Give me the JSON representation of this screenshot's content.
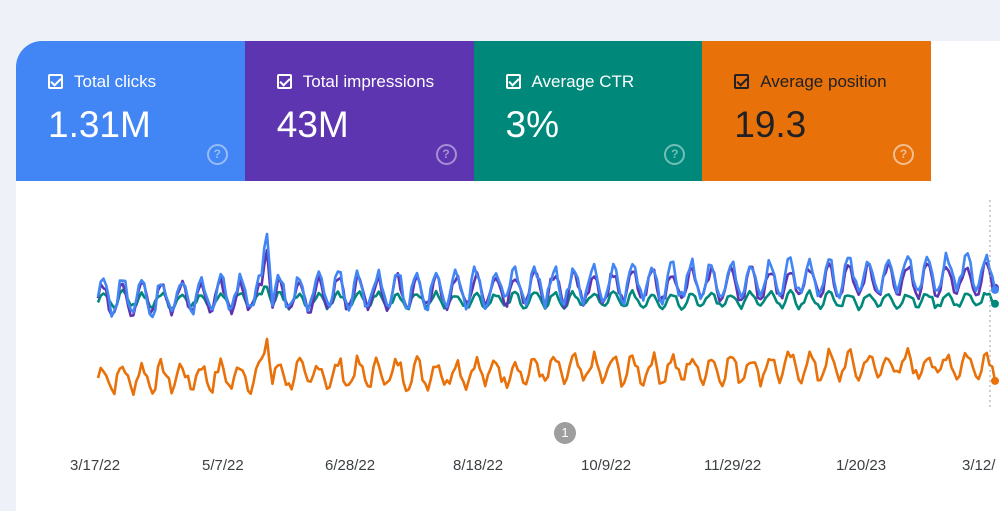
{
  "tiles": [
    {
      "key": "clicks",
      "label": "Total clicks",
      "value": "1.31M",
      "color": "#4285f4",
      "help_icon": "help-circle-icon"
    },
    {
      "key": "impr",
      "label": "Total impressions",
      "value": "43M",
      "color": "#5e35b1",
      "help_icon": "help-circle-icon"
    },
    {
      "key": "ctr",
      "label": "Average CTR",
      "value": "3%",
      "color": "#00897b",
      "help_icon": "help-circle-icon"
    },
    {
      "key": "pos",
      "label": "Average position",
      "value": "19.3",
      "color": "#e8710a",
      "help_icon": "help-circle-icon"
    }
  ],
  "annotation": {
    "label": "1"
  },
  "chart_data": {
    "type": "line",
    "x_ticks": [
      "3/17/22",
      "5/7/22",
      "6/28/22",
      "8/18/22",
      "10/9/22",
      "11/29/22",
      "1/20/23",
      "3/12/"
    ],
    "series": [
      {
        "key": "clicks",
        "color": "#4285f4"
      },
      {
        "key": "impr",
        "color": "#5e35b1"
      },
      {
        "key": "ctr",
        "color": "#00897b"
      },
      {
        "key": "pos",
        "color": "#e8710a"
      }
    ],
    "grid": false
  }
}
